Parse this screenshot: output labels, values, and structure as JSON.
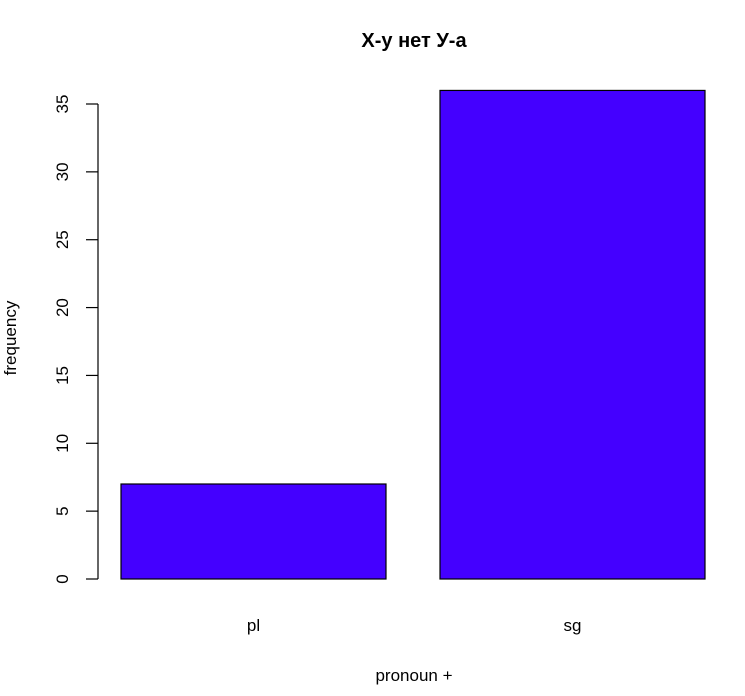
{
  "chart_data": {
    "type": "bar",
    "title": "Х-у нет У-а",
    "xlabel": "pronoun +",
    "ylabel": "frequency",
    "categories": [
      "pl",
      "sg"
    ],
    "values": [
      7,
      36
    ],
    "ylim": [
      0,
      35
    ],
    "yticks": [
      "0",
      "5",
      "10",
      "15",
      "20",
      "25",
      "30",
      "35"
    ],
    "bar_color": "#4400ff",
    "grid": false
  }
}
